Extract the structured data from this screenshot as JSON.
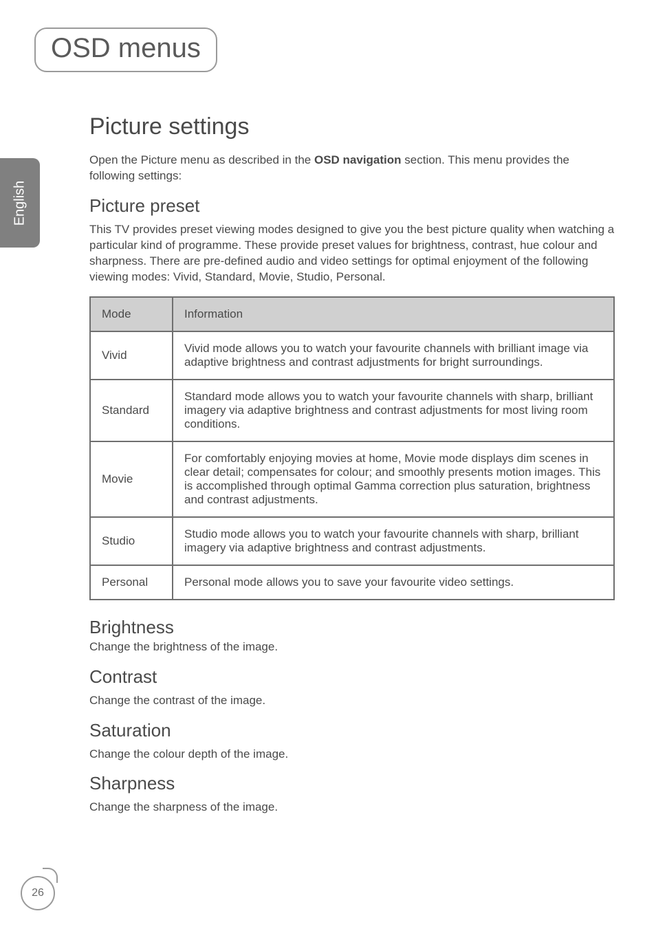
{
  "chapter_title": "OSD menus",
  "side_tab_label": "English",
  "section_title": "Picture settings",
  "intro_pre": "Open the Picture menu as described in the ",
  "intro_bold": "OSD navigation",
  "intro_post": " section. This menu provides the following settings:",
  "picture_preset": {
    "heading": "Picture preset",
    "body": "This TV provides preset viewing modes designed to give you the best picture quality when watching a particular kind of programme. These provide preset values for brightness, contrast, hue colour and sharpness. There are pre-defined audio and video settings for optimal enjoyment of the following viewing modes: Vivid, Standard, Movie, Studio, Personal."
  },
  "modes_table": {
    "header_mode": "Mode",
    "header_info": "Information",
    "rows": [
      {
        "mode": "Vivid",
        "info": "Vivid mode allows you to watch your favourite channels with brilliant image via adaptive brightness and contrast adjustments for bright surroundings."
      },
      {
        "mode": "Standard",
        "info": "Standard mode allows you to watch your favourite channels with sharp, brilliant imagery via adaptive brightness and contrast adjustments for most living room conditions."
      },
      {
        "mode": "Movie",
        "info": "For comfortably enjoying movies at home, Movie mode displays dim scenes in clear detail; compensates for colour; and smoothly presents motion images. This is accomplished through optimal Gamma correction plus saturation, brightness and contrast adjustments."
      },
      {
        "mode": "Studio",
        "info": "Studio mode allows you to watch your favourite channels with sharp, brilliant imagery via adaptive brightness and contrast adjustments."
      },
      {
        "mode": "Personal",
        "info": "Personal mode allows you to save your favourite video settings."
      }
    ]
  },
  "brightness": {
    "heading": "Brightness",
    "body": "Change the brightness of the image."
  },
  "contrast": {
    "heading": "Contrast",
    "body": "Change the contrast of the image."
  },
  "saturation": {
    "heading": "Saturation",
    "body": "Change the colour depth of the image."
  },
  "sharpness": {
    "heading": "Sharpness",
    "body": "Change the sharpness of the image."
  },
  "page_number": "26",
  "colors": {
    "text": "#4a4a4a",
    "border": "#6f6f6f",
    "pill_border": "#9a9a9a",
    "table_header_bg": "#d0d0d0",
    "side_tab_bg": "#808080",
    "side_tab_text": "#ffffff",
    "page_bg": "#ffffff"
  },
  "fonts": {
    "chapter_title_pt": 40,
    "h1_pt": 34,
    "h2_pt": 26,
    "body_pt": 17
  }
}
